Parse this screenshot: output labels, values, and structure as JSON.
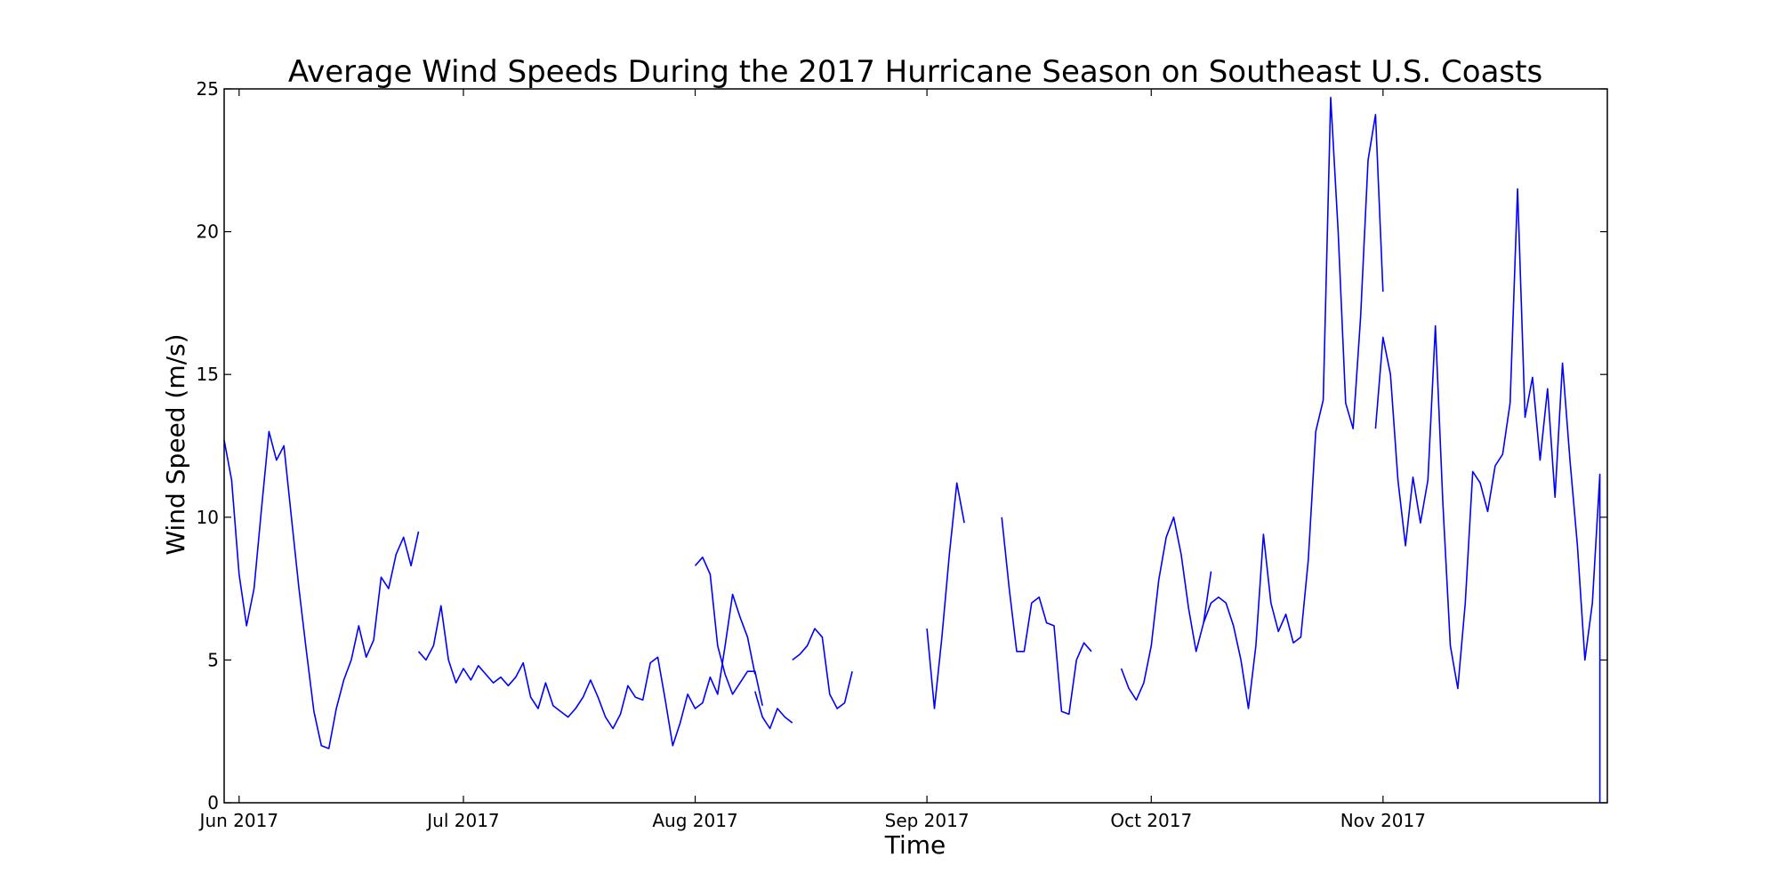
{
  "chart_data": {
    "type": "line",
    "title": "Average Wind Speeds During the 2017 Hurricane Season on Southeast U.S. Coasts",
    "xlabel": "Time",
    "ylabel": "Wind Speed (m/s)",
    "xlim": [
      "2017-05-30",
      "2017-11-29"
    ],
    "ylim": [
      0,
      25
    ],
    "grid": false,
    "legend": "none",
    "x_ticks": [
      {
        "date": "2017-06-01",
        "label": "Jun 2017"
      },
      {
        "date": "2017-07-01",
        "label": "Jul 2017"
      },
      {
        "date": "2017-08-01",
        "label": "Aug 2017"
      },
      {
        "date": "2017-09-01",
        "label": "Sep 2017"
      },
      {
        "date": "2017-10-01",
        "label": "Oct 2017"
      },
      {
        "date": "2017-11-01",
        "label": "Nov 2017"
      }
    ],
    "y_ticks": [
      0,
      5,
      10,
      15,
      20,
      25
    ],
    "series": [
      {
        "color": "#0000ff",
        "segments": [
          [
            [
              "2017-05-30",
              12.7
            ],
            [
              "2017-05-31",
              11.3
            ],
            [
              "2017-06-01",
              8.0
            ],
            [
              "2017-06-02",
              6.2
            ],
            [
              "2017-06-03",
              7.5
            ],
            [
              "2017-06-04",
              10.3
            ],
            [
              "2017-06-05",
              13.0
            ],
            [
              "2017-06-06",
              12.0
            ],
            [
              "2017-06-07",
              12.5
            ],
            [
              "2017-06-08",
              10.0
            ],
            [
              "2017-06-09",
              7.5
            ],
            [
              "2017-06-10",
              5.3
            ],
            [
              "2017-06-11",
              3.2
            ],
            [
              "2017-06-12",
              2.0
            ],
            [
              "2017-06-13",
              1.9
            ],
            [
              "2017-06-14",
              3.3
            ],
            [
              "2017-06-15",
              4.3
            ],
            [
              "2017-06-16",
              5.0
            ],
            [
              "2017-06-17",
              6.2
            ],
            [
              "2017-06-18",
              5.1
            ],
            [
              "2017-06-19",
              5.7
            ],
            [
              "2017-06-20",
              7.9
            ],
            [
              "2017-06-21",
              7.5
            ],
            [
              "2017-06-22",
              8.7
            ],
            [
              "2017-06-23",
              9.3
            ],
            [
              "2017-06-24",
              8.3
            ],
            [
              "2017-06-25",
              9.5
            ]
          ],
          [
            [
              "2017-06-25",
              5.3
            ],
            [
              "2017-06-26",
              5.0
            ],
            [
              "2017-06-27",
              5.5
            ],
            [
              "2017-06-28",
              6.9
            ],
            [
              "2017-06-29",
              5.0
            ],
            [
              "2017-06-30",
              4.2
            ],
            [
              "2017-07-01",
              4.7
            ],
            [
              "2017-07-02",
              4.3
            ],
            [
              "2017-07-03",
              4.8
            ],
            [
              "2017-07-04",
              4.5
            ],
            [
              "2017-07-05",
              4.2
            ],
            [
              "2017-07-06",
              4.4
            ],
            [
              "2017-07-07",
              4.1
            ],
            [
              "2017-07-08",
              4.4
            ],
            [
              "2017-07-09",
              4.9
            ],
            [
              "2017-07-10",
              3.7
            ],
            [
              "2017-07-11",
              3.3
            ],
            [
              "2017-07-12",
              4.2
            ],
            [
              "2017-07-13",
              3.4
            ],
            [
              "2017-07-14",
              3.2
            ],
            [
              "2017-07-15",
              3.0
            ],
            [
              "2017-07-16",
              3.3
            ],
            [
              "2017-07-17",
              3.7
            ],
            [
              "2017-07-18",
              4.3
            ],
            [
              "2017-07-19",
              3.7
            ],
            [
              "2017-07-20",
              3.0
            ],
            [
              "2017-07-21",
              2.6
            ],
            [
              "2017-07-22",
              3.1
            ],
            [
              "2017-07-23",
              4.1
            ],
            [
              "2017-07-24",
              3.7
            ],
            [
              "2017-07-25",
              3.6
            ],
            [
              "2017-07-26",
              4.9
            ],
            [
              "2017-07-27",
              5.1
            ],
            [
              "2017-07-28",
              3.6
            ],
            [
              "2017-07-29",
              2.0
            ],
            [
              "2017-07-30",
              2.8
            ],
            [
              "2017-07-31",
              3.8
            ],
            [
              "2017-08-01",
              3.3
            ],
            [
              "2017-08-02",
              3.5
            ],
            [
              "2017-08-03",
              4.4
            ],
            [
              "2017-08-04",
              3.8
            ],
            [
              "2017-08-05",
              5.5
            ],
            [
              "2017-08-06",
              7.3
            ],
            [
              "2017-08-07",
              6.5
            ],
            [
              "2017-08-08",
              5.8
            ],
            [
              "2017-08-09",
              4.5
            ]
          ],
          [
            [
              "2017-08-01",
              8.3
            ],
            [
              "2017-08-02",
              8.6
            ],
            [
              "2017-08-03",
              8.0
            ],
            [
              "2017-08-04",
              5.5
            ],
            [
              "2017-08-05",
              4.5
            ],
            [
              "2017-08-06",
              3.8
            ],
            [
              "2017-08-07",
              4.2
            ],
            [
              "2017-08-08",
              4.6
            ],
            [
              "2017-08-09",
              4.6
            ],
            [
              "2017-08-10",
              3.4
            ]
          ],
          [
            [
              "2017-08-09",
              3.9
            ],
            [
              "2017-08-10",
              3.0
            ],
            [
              "2017-08-11",
              2.6
            ],
            [
              "2017-08-12",
              3.3
            ],
            [
              "2017-08-13",
              3.0
            ],
            [
              "2017-08-14",
              2.8
            ]
          ],
          [
            [
              "2017-08-14",
              5.0
            ],
            [
              "2017-08-15",
              5.2
            ],
            [
              "2017-08-16",
              5.5
            ],
            [
              "2017-08-17",
              6.1
            ],
            [
              "2017-08-18",
              5.8
            ],
            [
              "2017-08-19",
              3.8
            ],
            [
              "2017-08-20",
              3.3
            ],
            [
              "2017-08-21",
              3.5
            ],
            [
              "2017-08-22",
              4.6
            ]
          ],
          [
            [
              "2017-09-01",
              6.1
            ],
            [
              "2017-09-02",
              3.3
            ],
            [
              "2017-09-03",
              5.8
            ],
            [
              "2017-09-04",
              8.7
            ],
            [
              "2017-09-05",
              11.2
            ],
            [
              "2017-09-06",
              9.8
            ]
          ],
          [
            [
              "2017-09-11",
              10.0
            ],
            [
              "2017-09-12",
              7.5
            ],
            [
              "2017-09-13",
              5.3
            ],
            [
              "2017-09-14",
              5.3
            ],
            [
              "2017-09-15",
              7.0
            ],
            [
              "2017-09-16",
              7.2
            ],
            [
              "2017-09-17",
              6.3
            ],
            [
              "2017-09-18",
              6.2
            ],
            [
              "2017-09-19",
              3.2
            ],
            [
              "2017-09-20",
              3.1
            ],
            [
              "2017-09-21",
              5.0
            ],
            [
              "2017-09-22",
              5.6
            ],
            [
              "2017-09-23",
              5.3
            ]
          ],
          [
            [
              "2017-09-27",
              4.7
            ],
            [
              "2017-09-28",
              4.0
            ],
            [
              "2017-09-29",
              3.6
            ],
            [
              "2017-09-30",
              4.2
            ],
            [
              "2017-10-01",
              5.5
            ],
            [
              "2017-10-02",
              7.8
            ],
            [
              "2017-10-03",
              9.3
            ],
            [
              "2017-10-04",
              10.0
            ],
            [
              "2017-10-05",
              8.7
            ],
            [
              "2017-10-06",
              6.8
            ],
            [
              "2017-10-07",
              5.3
            ],
            [
              "2017-10-08",
              6.3
            ],
            [
              "2017-10-09",
              8.1
            ]
          ],
          [
            [
              "2017-10-08",
              6.3
            ],
            [
              "2017-10-09",
              7.0
            ],
            [
              "2017-10-10",
              7.2
            ],
            [
              "2017-10-11",
              7.0
            ],
            [
              "2017-10-12",
              6.2
            ],
            [
              "2017-10-13",
              5.0
            ],
            [
              "2017-10-14",
              3.3
            ],
            [
              "2017-10-15",
              5.5
            ],
            [
              "2017-10-16",
              9.4
            ],
            [
              "2017-10-17",
              7.0
            ],
            [
              "2017-10-18",
              6.0
            ],
            [
              "2017-10-19",
              6.6
            ],
            [
              "2017-10-20",
              5.6
            ],
            [
              "2017-10-21",
              5.8
            ],
            [
              "2017-10-22",
              8.5
            ],
            [
              "2017-10-23",
              13.0
            ],
            [
              "2017-10-24",
              14.1
            ],
            [
              "2017-10-25",
              24.7
            ],
            [
              "2017-10-26",
              20.0
            ],
            [
              "2017-10-27",
              14.0
            ],
            [
              "2017-10-28",
              13.1
            ],
            [
              "2017-10-29",
              17.0
            ],
            [
              "2017-10-30",
              22.5
            ],
            [
              "2017-10-31",
              24.1
            ],
            [
              "2017-11-01",
              17.9
            ]
          ],
          [
            [
              "2017-10-31",
              13.1
            ],
            [
              "2017-11-01",
              16.3
            ],
            [
              "2017-11-02",
              15.0
            ],
            [
              "2017-11-03",
              11.3
            ],
            [
              "2017-11-04",
              9.0
            ],
            [
              "2017-11-05",
              11.4
            ],
            [
              "2017-11-06",
              9.8
            ],
            [
              "2017-11-07",
              11.3
            ],
            [
              "2017-11-08",
              16.7
            ],
            [
              "2017-11-09",
              10.5
            ],
            [
              "2017-11-10",
              5.5
            ],
            [
              "2017-11-11",
              4.0
            ],
            [
              "2017-11-12",
              7.0
            ],
            [
              "2017-11-13",
              11.6
            ],
            [
              "2017-11-14",
              11.2
            ],
            [
              "2017-11-15",
              10.2
            ],
            [
              "2017-11-16",
              11.8
            ],
            [
              "2017-11-17",
              12.2
            ],
            [
              "2017-11-18",
              14.0
            ],
            [
              "2017-11-19",
              21.5
            ],
            [
              "2017-11-20",
              13.5
            ],
            [
              "2017-11-21",
              14.9
            ],
            [
              "2017-11-22",
              12.0
            ],
            [
              "2017-11-23",
              14.5
            ],
            [
              "2017-11-24",
              10.7
            ],
            [
              "2017-11-25",
              15.4
            ],
            [
              "2017-11-26",
              12.0
            ],
            [
              "2017-11-27",
              9.0
            ],
            [
              "2017-11-28",
              5.0
            ],
            [
              "2017-11-29",
              7.0
            ],
            [
              "2017-11-30",
              11.5
            ],
            [
              "2017-11-30",
              0.0
            ]
          ]
        ]
      }
    ]
  }
}
